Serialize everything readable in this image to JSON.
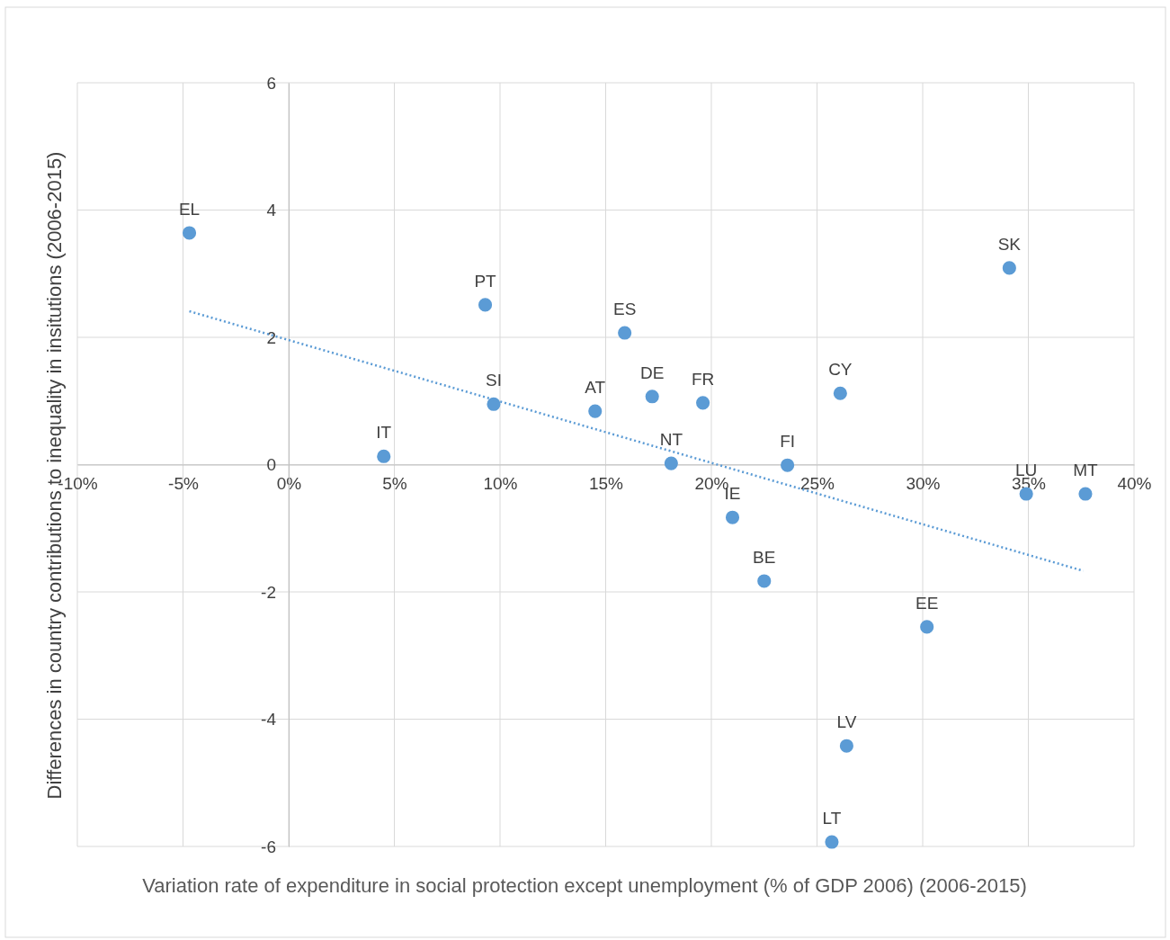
{
  "chart_data": {
    "type": "scatter",
    "xlabel": "Variation rate of expenditure in social protection except unemployment (% of GDP 2006) (2006-2015)",
    "ylabel": "Differences in country contributions to inequality in insitutions (2006-2015)",
    "xlim": [
      -10,
      40
    ],
    "xticks": [
      {
        "value": -10,
        "label": "-10%"
      },
      {
        "value": -5,
        "label": "-5%"
      },
      {
        "value": 0,
        "label": "0%"
      },
      {
        "value": 5,
        "label": "5%"
      },
      {
        "value": 10,
        "label": "10%"
      },
      {
        "value": 15,
        "label": "15%"
      },
      {
        "value": 20,
        "label": "20%"
      },
      {
        "value": 25,
        "label": "25%"
      },
      {
        "value": 30,
        "label": "30%"
      },
      {
        "value": 35,
        "label": "35%"
      },
      {
        "value": 40,
        "label": "40%"
      }
    ],
    "ylim": [
      -6,
      6
    ],
    "yticks": [
      -6,
      -4,
      -2,
      0,
      2,
      4,
      6
    ],
    "grid": true,
    "marker": "circle",
    "x": [
      -4.7,
      9.3,
      9.7,
      4.5,
      14.5,
      15.9,
      17.2,
      18.1,
      19.6,
      21.0,
      22.5,
      23.6,
      26.1,
      25.7,
      26.4,
      30.2,
      34.1,
      34.9,
      37.7
    ],
    "series": [
      {
        "color": "#5b9bd5",
        "values": [
          3.64,
          2.51,
          0.95,
          0.13,
          0.84,
          2.07,
          1.07,
          0.02,
          0.97,
          -0.83,
          -1.83,
          -0.01,
          1.12,
          -5.93,
          -4.42,
          -2.55,
          3.09,
          -0.46,
          -0.46
        ]
      },
      {
        "type": "line",
        "color": "#5b9bd5",
        "line_style": "dotted",
        "marker": "none",
        "x": [
          -4.7,
          37.6
        ],
        "values": [
          2.41,
          -1.67
        ]
      }
    ],
    "annotations": [
      {
        "text": "EL",
        "x": -4.7,
        "y": 3.64
      },
      {
        "text": "PT",
        "x": 9.3,
        "y": 2.51
      },
      {
        "text": "SI",
        "x": 9.7,
        "y": 0.95
      },
      {
        "text": "IT",
        "x": 4.5,
        "y": 0.13
      },
      {
        "text": "AT",
        "x": 14.5,
        "y": 0.84
      },
      {
        "text": "ES",
        "x": 15.9,
        "y": 2.07
      },
      {
        "text": "DE",
        "x": 17.2,
        "y": 1.07
      },
      {
        "text": "NT",
        "x": 18.1,
        "y": 0.02
      },
      {
        "text": "FR",
        "x": 19.6,
        "y": 0.97
      },
      {
        "text": "IE",
        "x": 21.0,
        "y": -0.83
      },
      {
        "text": "BE",
        "x": 22.5,
        "y": -1.83
      },
      {
        "text": "FI",
        "x": 23.6,
        "y": -0.01
      },
      {
        "text": "CY",
        "x": 26.1,
        "y": 1.12
      },
      {
        "text": "LT",
        "x": 25.7,
        "y": -5.93
      },
      {
        "text": "LV",
        "x": 26.4,
        "y": -4.42
      },
      {
        "text": "EE",
        "x": 30.2,
        "y": -2.55
      },
      {
        "text": "SK",
        "x": 34.1,
        "y": 3.09
      },
      {
        "text": "LU",
        "x": 34.9,
        "y": -0.46
      },
      {
        "text": "MT",
        "x": 37.7,
        "y": -0.46
      }
    ]
  }
}
